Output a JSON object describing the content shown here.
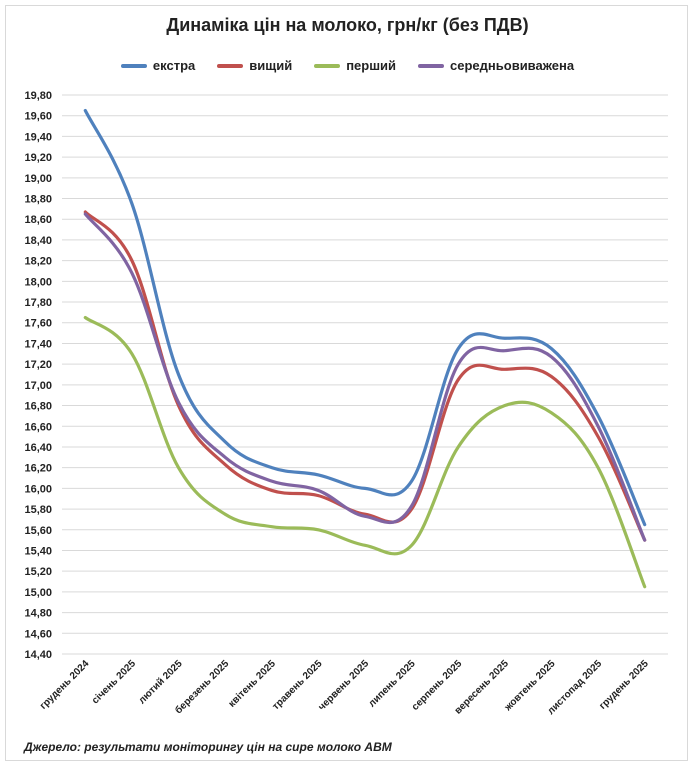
{
  "chart_data": {
    "type": "line",
    "title": "Динаміка цін на молоко, грн/кг (без ПДВ)",
    "xlabel": "",
    "ylabel": "",
    "ylim": [
      14.4,
      19.8
    ],
    "y_ticks": [
      "19,80",
      "19,60",
      "19,40",
      "19,20",
      "19,00",
      "18,80",
      "18,60",
      "18,40",
      "18,20",
      "18,00",
      "17,80",
      "17,60",
      "17,40",
      "17,20",
      "17,00",
      "16,80",
      "16,60",
      "16,40",
      "16,20",
      "16,00",
      "15,80",
      "15,60",
      "15,40",
      "15,20",
      "15,00",
      "14,80",
      "14,60",
      "14,40"
    ],
    "grid": true,
    "legend_position": "top",
    "categories": [
      "грудень 2024",
      "січень 2025",
      "лютий 2025",
      "березень 2025",
      "квітень 2025",
      "травень 2025",
      "червень 2025",
      "липень 2025",
      "серпень 2025",
      "вересень 2025",
      "жовтень 2025",
      "листопад 2025",
      "грудень 2025"
    ],
    "series": [
      {
        "name": "екстра",
        "color": "#4f81bd",
        "values": [
          19.65,
          18.75,
          17.1,
          16.45,
          16.2,
          16.13,
          16.0,
          16.07,
          17.35,
          17.45,
          17.35,
          16.7,
          15.65
        ]
      },
      {
        "name": "вищий",
        "color": "#c0504d",
        "values": [
          18.67,
          18.2,
          16.8,
          16.23,
          15.98,
          15.93,
          15.75,
          15.8,
          17.05,
          17.15,
          17.08,
          16.5,
          15.5
        ]
      },
      {
        "name": "перший",
        "color": "#9bbb59",
        "values": [
          17.65,
          17.3,
          16.2,
          15.75,
          15.63,
          15.6,
          15.45,
          15.45,
          16.4,
          16.8,
          16.73,
          16.2,
          15.05
        ]
      },
      {
        "name": "середньовиважена",
        "color": "#8064a2",
        "values": [
          18.65,
          18.08,
          16.83,
          16.3,
          16.07,
          15.98,
          15.73,
          15.83,
          17.2,
          17.33,
          17.27,
          16.6,
          15.5
        ]
      }
    ]
  },
  "legend": {
    "items": [
      {
        "label": "екстра",
        "color": "#4f81bd"
      },
      {
        "label": "вищий",
        "color": "#c0504d"
      },
      {
        "label": "перший",
        "color": "#9bbb59"
      },
      {
        "label": "середньовиважена",
        "color": "#8064a2"
      }
    ]
  },
  "footer": {
    "source": "Джерело: результати моніторингу цін на сире молоко АВМ"
  }
}
